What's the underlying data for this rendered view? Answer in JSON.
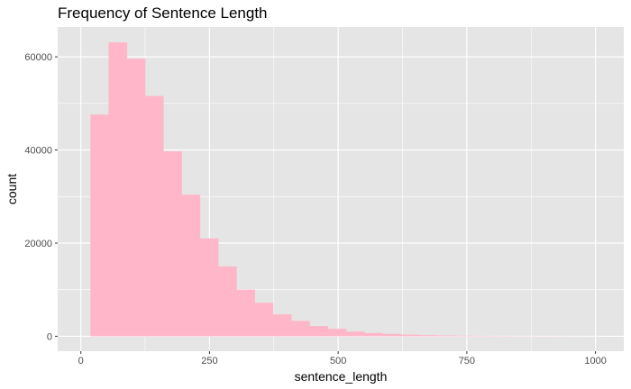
{
  "chart_data": {
    "type": "bar",
    "title": "Frequency of Sentence Length",
    "xlabel": "sentence_length",
    "ylabel": "count",
    "x_ticks": [
      "0",
      "250",
      "500",
      "750",
      "1000"
    ],
    "y_ticks": [
      "0",
      "20000",
      "40000",
      "60000"
    ],
    "xlim": [
      -45,
      1055
    ],
    "ylim": [
      -3200,
      66400
    ],
    "grid": true,
    "bin_width": 35.5,
    "bins": [
      {
        "start": 18.5,
        "count": 47600
      },
      {
        "start": 54.0,
        "count": 63100
      },
      {
        "start": 89.5,
        "count": 59600
      },
      {
        "start": 125.0,
        "count": 51600
      },
      {
        "start": 160.5,
        "count": 39700
      },
      {
        "start": 196.0,
        "count": 30400
      },
      {
        "start": 231.5,
        "count": 21000
      },
      {
        "start": 267.0,
        "count": 15000
      },
      {
        "start": 302.5,
        "count": 10000
      },
      {
        "start": 338.0,
        "count": 7200
      },
      {
        "start": 373.5,
        "count": 4700
      },
      {
        "start": 409.0,
        "count": 3300
      },
      {
        "start": 444.5,
        "count": 2200
      },
      {
        "start": 480.0,
        "count": 1600
      },
      {
        "start": 515.5,
        "count": 1000
      },
      {
        "start": 551.0,
        "count": 700
      },
      {
        "start": 586.5,
        "count": 500
      },
      {
        "start": 622.0,
        "count": 350
      },
      {
        "start": 657.5,
        "count": 250
      },
      {
        "start": 693.0,
        "count": 180
      },
      {
        "start": 728.5,
        "count": 130
      },
      {
        "start": 764.0,
        "count": 90
      },
      {
        "start": 799.5,
        "count": 70
      },
      {
        "start": 835.0,
        "count": 50
      },
      {
        "start": 870.5,
        "count": 40
      },
      {
        "start": 906.0,
        "count": 30
      },
      {
        "start": 941.5,
        "count": 20
      },
      {
        "start": 977.0,
        "count": 15
      }
    ],
    "bar_color": "#FFB6C8",
    "panel_background": "#E5E5E5",
    "grid_color": "#FFFFFF"
  }
}
